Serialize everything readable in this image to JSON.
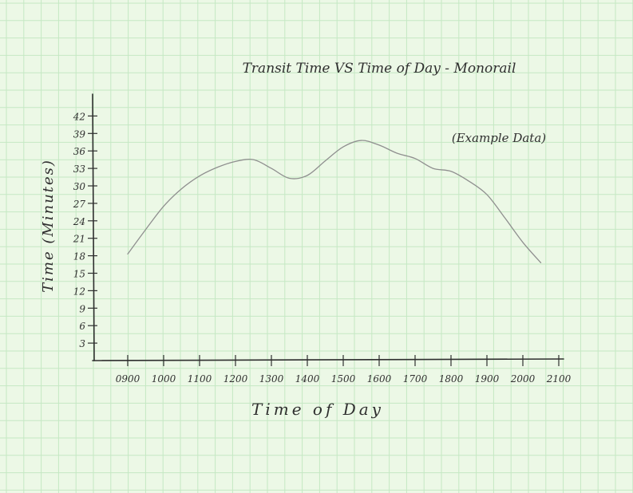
{
  "chart_data": {
    "type": "line",
    "title": "Transit Time VS Time of Day - Monorail",
    "subtitle": "(Example Data)",
    "xlabel": "Time of Day",
    "ylabel": "Time (Minutes)",
    "x_tick_labels": [
      "0900",
      "1000",
      "1100",
      "1200",
      "1300",
      "1400",
      "1500",
      "1600",
      "1700",
      "1800",
      "1900",
      "2000",
      "2100"
    ],
    "y_ticks": [
      3,
      6,
      9,
      12,
      15,
      18,
      21,
      24,
      27,
      30,
      33,
      36,
      39,
      42
    ],
    "ylim": [
      0,
      44
    ],
    "grid": true,
    "series": [
      {
        "x": [
          "0900",
          "0930",
          "1000",
          "1030",
          "1100",
          "1130",
          "1200",
          "1230",
          "1300",
          "1330",
          "1400",
          "1430",
          "1500",
          "1530",
          "1600",
          "1630",
          "1700",
          "1730",
          "1800",
          "1830",
          "1900",
          "1930",
          "2000",
          "2030"
        ],
        "values": [
          18.3,
          22.5,
          26.5,
          29.5,
          31.7,
          33.2,
          34.2,
          34.5,
          33.0,
          31.3,
          31.8,
          34.3,
          36.7,
          37.8,
          37.0,
          35.6,
          34.7,
          33.0,
          32.5,
          30.8,
          28.5,
          24.5,
          20.3,
          16.8
        ]
      }
    ],
    "colors": {
      "paper": "#ecf8e6",
      "grid": "#c5e8c3",
      "pencil": "#2f2f2f",
      "curve": "#8f8f8f"
    }
  }
}
